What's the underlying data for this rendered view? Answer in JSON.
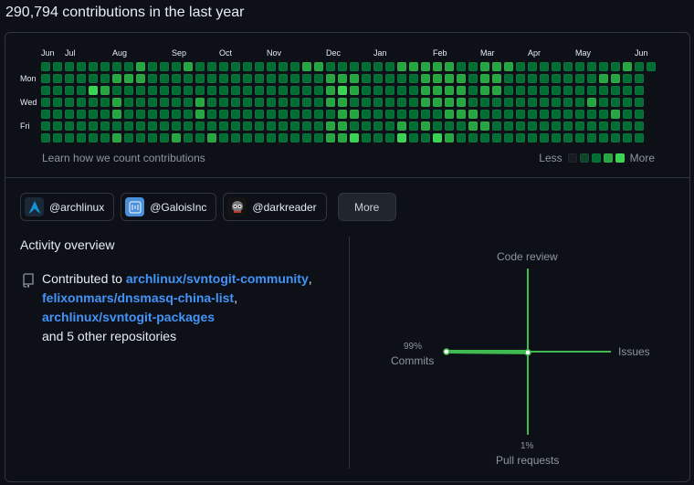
{
  "heading": "290,794 contributions in the last year",
  "months": [
    {
      "label": "Jun",
      "col": 0
    },
    {
      "label": "Jul",
      "col": 2
    },
    {
      "label": "Aug",
      "col": 6
    },
    {
      "label": "Sep",
      "col": 11
    },
    {
      "label": "Oct",
      "col": 15
    },
    {
      "label": "Nov",
      "col": 19
    },
    {
      "label": "Dec",
      "col": 24
    },
    {
      "label": "Jan",
      "col": 28
    },
    {
      "label": "Feb",
      "col": 33
    },
    {
      "label": "Mar",
      "col": 37
    },
    {
      "label": "Apr",
      "col": 41
    },
    {
      "label": "May",
      "col": 45
    },
    {
      "label": "Jun",
      "col": 50
    }
  ],
  "day_labels": {
    "mon": "Mon",
    "wed": "Wed",
    "fri": "Fri"
  },
  "contribution_levels": [
    "2222222232223222222222332222223333322333222222222322",
    "222222333222222222222222333222223333233222222223322",
    "222243222222222222222222343222223333233222222222222",
    "222222322222232222222222332222223333222222222232222",
    "222222322222232222222222233222222233322222222222322",
    "222222222222222222222222332222323222332222222222222",
    "222222322223223222222222334222422432222222222222222"
  ],
  "learn_link": "Learn how we count contributions",
  "legend": {
    "less": "Less",
    "more": "More"
  },
  "orgs": [
    {
      "handle": "@archlinux",
      "icon": "archlinux-logo-icon"
    },
    {
      "handle": "@GaloisInc",
      "icon": "galois-logo-icon"
    },
    {
      "handle": "@darkreader",
      "icon": "darkreader-logo-icon"
    }
  ],
  "more_button": "More",
  "activity": {
    "title": "Activity overview",
    "contributed_to": "Contributed to",
    "repos": [
      "archlinux/svntogit-community",
      "felixonmars/dnsmasq-china-list",
      "archlinux/svntogit-packages"
    ],
    "others": "and 5 other repositories"
  },
  "radar": {
    "code_review": "Code review",
    "issues": "Issues",
    "commits": "Commits",
    "pull_requests": "Pull requests",
    "commits_pct": "99%",
    "pr_pct": "1%",
    "values": {
      "commits": 99,
      "pull_requests": 1,
      "issues": 0,
      "code_review": 0
    },
    "color": "#3fb950"
  }
}
